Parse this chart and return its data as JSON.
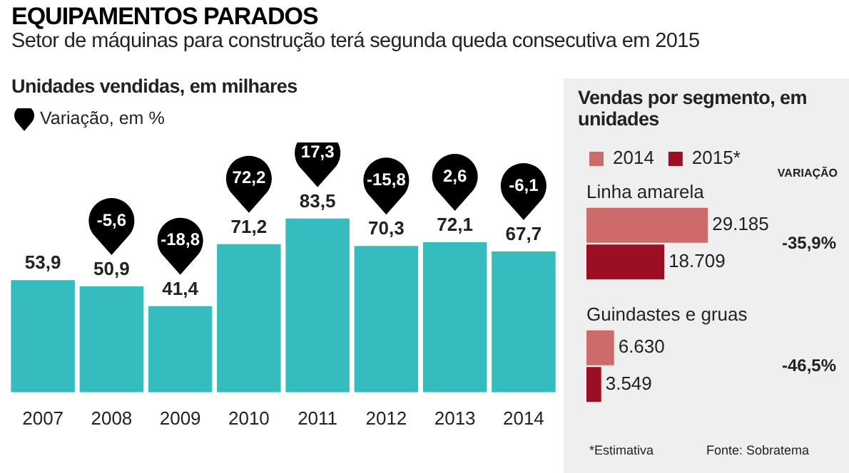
{
  "chart_data": [
    {
      "type": "bar",
      "title": "EQUIPAMENTOS PARADOS",
      "subtitle": "Setor de máquinas para construção terá segunda queda consecutiva em 2015",
      "categories": [
        "2007",
        "2008",
        "2009",
        "2010",
        "2011",
        "2012",
        "2013",
        "2014"
      ],
      "values": [
        53.9,
        50.9,
        41.4,
        71.2,
        83.5,
        70.3,
        72.1,
        67.7
      ],
      "value_labels": [
        "53,9",
        "50,9",
        "41,4",
        "71,2",
        "83,5",
        "70,3",
        "72,1",
        "67,7"
      ],
      "color": "#35bcbf",
      "tick_labels": "x",
      "annotations": [
        "Unidades vendidas, em milhares",
        "Variação, em %",
        "-5,6",
        "-18,8",
        "72,2",
        "17,3",
        "-15,8",
        "2,6",
        "-6,1"
      ]
    },
    {
      "type": "bar",
      "orientation": "horizontal",
      "title": "Vendas por segmento, em unidades",
      "categories": [
        "Linha amarela",
        "Guindastes e gruas"
      ],
      "tick_labels": "y",
      "legend": "top",
      "series": [
        {
          "name": "2014",
          "color": "#cd6a6a",
          "values": [
            29185,
            6630
          ],
          "value_labels": [
            "29.185",
            "6.630"
          ]
        },
        {
          "name": "2015*",
          "color": "#9b0f24",
          "values": [
            18709,
            3549
          ],
          "value_labels": [
            "18.709",
            "3.549"
          ]
        }
      ],
      "annotations": [
        "VARIAÇÃO",
        "-35,9%",
        "-46,5%",
        "*Estimativa",
        "Fonte: Sobratema"
      ]
    }
  ]
}
